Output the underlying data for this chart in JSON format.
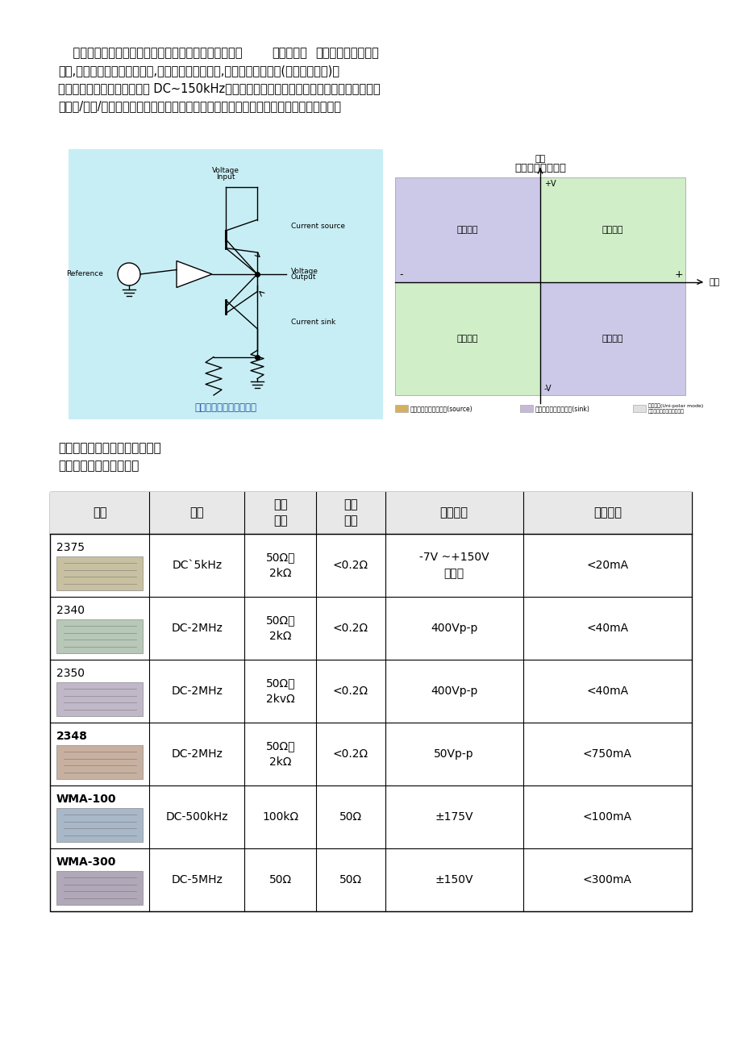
{
  "page_bg": "#ffffff",
  "body_fontsize": 10.5,
  "circuit_bg": "#c8eef5",
  "circuit_caption": "简化的双极性电源原理图",
  "quadrant_title": "四象限工作概念图",
  "q1_label": "第一象限",
  "q2_label": "第二象限",
  "q3_label": "第三象限",
  "q4_label": "第四象限",
  "q1_color": "#d0eec8",
  "q2_color": "#ccc8e8",
  "q3_color": "#d0eec8",
  "q4_color": "#ccc8e8",
  "company_title1": "北京华贺技术有限公司实验室级",
  "company_title2": "波形功率放大器产品一览",
  "table_headers": [
    "型号",
    "带宽",
    "输入\n阻抗",
    "输出\n阻抗",
    "输出电压",
    "输出电流"
  ],
  "table_rows": [
    {
      "model": "2375",
      "bandwidth": "DC`5kHz",
      "input_imp": "50Ω或\n2kΩ",
      "output_imp": "<0.2Ω",
      "output_voltage": "-7V ~+150V\n四通道",
      "output_current": "<20mA",
      "model_bold": false
    },
    {
      "model": "2340",
      "bandwidth": "DC-2MHz",
      "input_imp": "50Ω或\n2kΩ",
      "output_imp": "<0.2Ω",
      "output_voltage": "400Vp-p",
      "output_current": "<40mA",
      "model_bold": false
    },
    {
      "model": "2350",
      "bandwidth": "DC-2MHz",
      "input_imp": "50Ω或\n2kvΩ",
      "output_imp": "<0.2Ω",
      "output_voltage": "400Vp-p",
      "output_current": "<40mA",
      "model_bold": false
    },
    {
      "model": "2348",
      "bandwidth": "DC-2MHz",
      "input_imp": "50Ω或\n2kΩ",
      "output_imp": "<0.2Ω",
      "output_voltage": "50Vp-p",
      "output_current": "<750mA",
      "model_bold": true
    },
    {
      "model": "WMA-100",
      "bandwidth": "DC-500kHz",
      "input_imp": "100kΩ",
      "output_imp": "50Ω",
      "output_voltage": "±175V",
      "output_current": "<100mA",
      "model_bold": true
    },
    {
      "model": "WMA-300",
      "bandwidth": "DC-5MHz",
      "input_imp": "50Ω",
      "output_imp": "50Ω",
      "output_voltage": "±150V",
      "output_current": "<300mA",
      "model_bold": true
    }
  ]
}
